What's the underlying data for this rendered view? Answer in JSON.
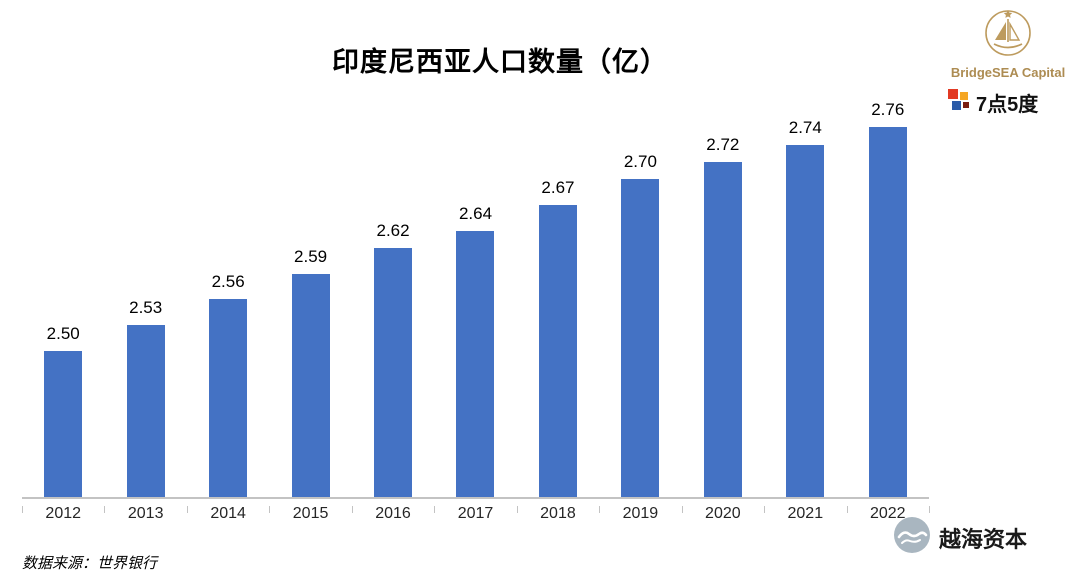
{
  "chart_data": {
    "type": "bar",
    "title": "印度尼西亚人口数量（亿）",
    "categories": [
      "2012",
      "2013",
      "2014",
      "2015",
      "2016",
      "2017",
      "2018",
      "2019",
      "2020",
      "2021",
      "2022"
    ],
    "values": [
      2.5,
      2.53,
      2.56,
      2.59,
      2.62,
      2.64,
      2.67,
      2.7,
      2.72,
      2.74,
      2.76
    ],
    "xlabel": "",
    "ylabel": "",
    "ylim": [
      2.33,
      2.8
    ],
    "bar_color": "#4472C4",
    "axis_color": "#C3C3C3",
    "grid": false,
    "legend_position": "none",
    "value_label_decimals": 2
  },
  "branding": {
    "bridgesea_name": "BridgeSEA Capital",
    "bridgesea_color": "#AD8C52",
    "qdwd_label": "7点5度",
    "watermark_label": "越海资本"
  },
  "footer": {
    "source": "数据来源：世界银行"
  }
}
